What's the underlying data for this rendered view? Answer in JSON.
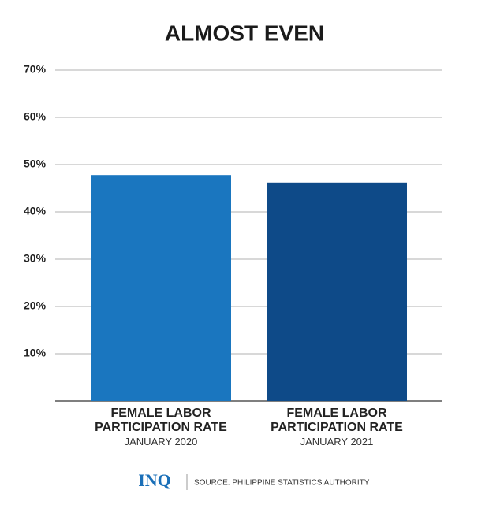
{
  "chart_data": {
    "type": "bar",
    "title": "ALMOST EVEN",
    "categories": [
      "FEMALE LABOR PARTICIPATION RATE",
      "FEMALE LABOR PARTICIPATION RATE"
    ],
    "category_sublabels": [
      "JANUARY 2020",
      "JANUARY 2021"
    ],
    "values": [
      47.8,
      46.2
    ],
    "colors": [
      "#1a76bf",
      "#0e4a88"
    ],
    "ylim": [
      0,
      70
    ],
    "yticks": [
      {
        "value": 10,
        "label": "10%"
      },
      {
        "value": 20,
        "label": "20%"
      },
      {
        "value": 30,
        "label": "30%"
      },
      {
        "value": 40,
        "label": "40%"
      },
      {
        "value": 50,
        "label": "50%"
      },
      {
        "value": 60,
        "label": "60%"
      },
      {
        "value": 70,
        "label": "70%"
      }
    ],
    "grid": true,
    "logo": "INQ",
    "source": "SOURCE: PHILIPPINE STATISTICS AUTHORITY"
  }
}
